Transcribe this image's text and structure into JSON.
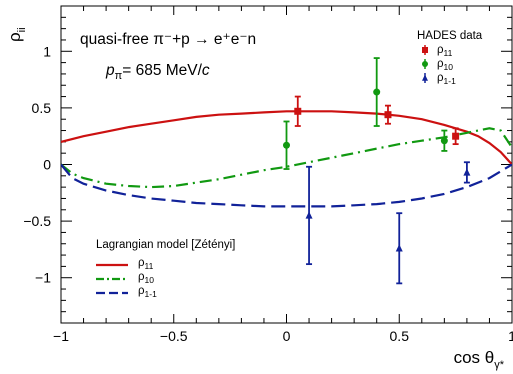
{
  "chart_data": {
    "type": "scatter",
    "xlabel": "cos θ",
    "xlabel_sub": "γ*",
    "ylabel": "ρ",
    "ylabel_sub": "ii",
    "xlim": [
      -1,
      1
    ],
    "ylim": [
      -1.4,
      1.4
    ],
    "x_ticks": [
      -1,
      -0.5,
      0,
      0.5,
      1
    ],
    "x_tick_labels": [
      "−1",
      "−0.5",
      "0",
      "0.5",
      "1"
    ],
    "y_ticks": [
      -1,
      -0.5,
      0,
      0.5,
      1
    ],
    "y_tick_labels": [
      "−1",
      "−0.5",
      "0",
      "0.5",
      "1"
    ],
    "annotations": {
      "reaction": "quasi-free π⁻+p → e⁺e⁻n",
      "momentum_symbol": "p",
      "momentum_sub": "π",
      "momentum_value": "= 685 MeV/",
      "momentum_unit": "c"
    },
    "data_legend": {
      "title": "HADES data",
      "placement": "top-right"
    },
    "model_legend": {
      "title": "Lagrangian model [Zétényi]",
      "placement": "bottom-left"
    },
    "data_series": [
      {
        "name": "ρ",
        "sub": "11",
        "color": "#cc1111",
        "marker": "square",
        "points": [
          {
            "x": 0.05,
            "y": 0.47,
            "err": 0.13
          },
          {
            "x": 0.45,
            "y": 0.44,
            "err": 0.08
          },
          {
            "x": 0.75,
            "y": 0.25,
            "err": 0.07
          }
        ]
      },
      {
        "name": "ρ",
        "sub": "10",
        "color": "#119911",
        "marker": "circle",
        "points": [
          {
            "x": 0.0,
            "y": 0.17,
            "err": 0.21
          },
          {
            "x": 0.4,
            "y": 0.64,
            "err": 0.3
          },
          {
            "x": 0.7,
            "y": 0.21,
            "err": 0.09
          }
        ]
      },
      {
        "name": "ρ",
        "sub": "1-1",
        "color": "#112299",
        "marker": "triangle",
        "points": [
          {
            "x": 0.1,
            "y": -0.45,
            "err": 0.43
          },
          {
            "x": 0.5,
            "y": -0.74,
            "err": 0.31
          },
          {
            "x": 0.8,
            "y": -0.07,
            "err": 0.09
          }
        ]
      }
    ],
    "model_series": [
      {
        "name": "ρ",
        "sub": "11",
        "color": "#cc1111",
        "dash": "solid",
        "x": [
          -1,
          -0.9,
          -0.8,
          -0.7,
          -0.6,
          -0.5,
          -0.4,
          -0.3,
          -0.2,
          -0.1,
          0,
          0.1,
          0.2,
          0.3,
          0.4,
          0.5,
          0.6,
          0.7,
          0.8,
          0.85,
          0.9,
          0.95,
          1
        ],
        "y": [
          0.2,
          0.25,
          0.29,
          0.33,
          0.36,
          0.39,
          0.42,
          0.44,
          0.45,
          0.46,
          0.47,
          0.47,
          0.47,
          0.46,
          0.45,
          0.43,
          0.4,
          0.35,
          0.29,
          0.25,
          0.19,
          0.11,
          0.0
        ]
      },
      {
        "name": "ρ",
        "sub": "10",
        "color": "#119911",
        "dash": "dash-dot",
        "x": [
          -1,
          -0.95,
          -0.9,
          -0.8,
          -0.7,
          -0.6,
          -0.5,
          -0.4,
          -0.3,
          -0.2,
          -0.1,
          0,
          0.1,
          0.2,
          0.3,
          0.4,
          0.5,
          0.6,
          0.7,
          0.8,
          0.9,
          0.95,
          1
        ],
        "y": [
          0.0,
          -0.08,
          -0.12,
          -0.17,
          -0.19,
          -0.2,
          -0.19,
          -0.16,
          -0.13,
          -0.09,
          -0.05,
          -0.02,
          0.02,
          0.06,
          0.1,
          0.14,
          0.18,
          0.21,
          0.24,
          0.28,
          0.32,
          0.3,
          0.15
        ]
      },
      {
        "name": "ρ",
        "sub": "1-1",
        "color": "#112299",
        "dash": "long-dash",
        "x": [
          -1,
          -0.95,
          -0.9,
          -0.8,
          -0.7,
          -0.6,
          -0.5,
          -0.4,
          -0.3,
          -0.2,
          -0.1,
          0,
          0.1,
          0.2,
          0.3,
          0.4,
          0.5,
          0.6,
          0.7,
          0.8,
          0.9,
          0.95,
          1
        ],
        "y": [
          0.0,
          -0.12,
          -0.17,
          -0.23,
          -0.27,
          -0.3,
          -0.32,
          -0.34,
          -0.35,
          -0.36,
          -0.37,
          -0.37,
          -0.37,
          -0.37,
          -0.36,
          -0.35,
          -0.33,
          -0.3,
          -0.26,
          -0.2,
          -0.12,
          -0.06,
          0.0
        ]
      }
    ]
  }
}
